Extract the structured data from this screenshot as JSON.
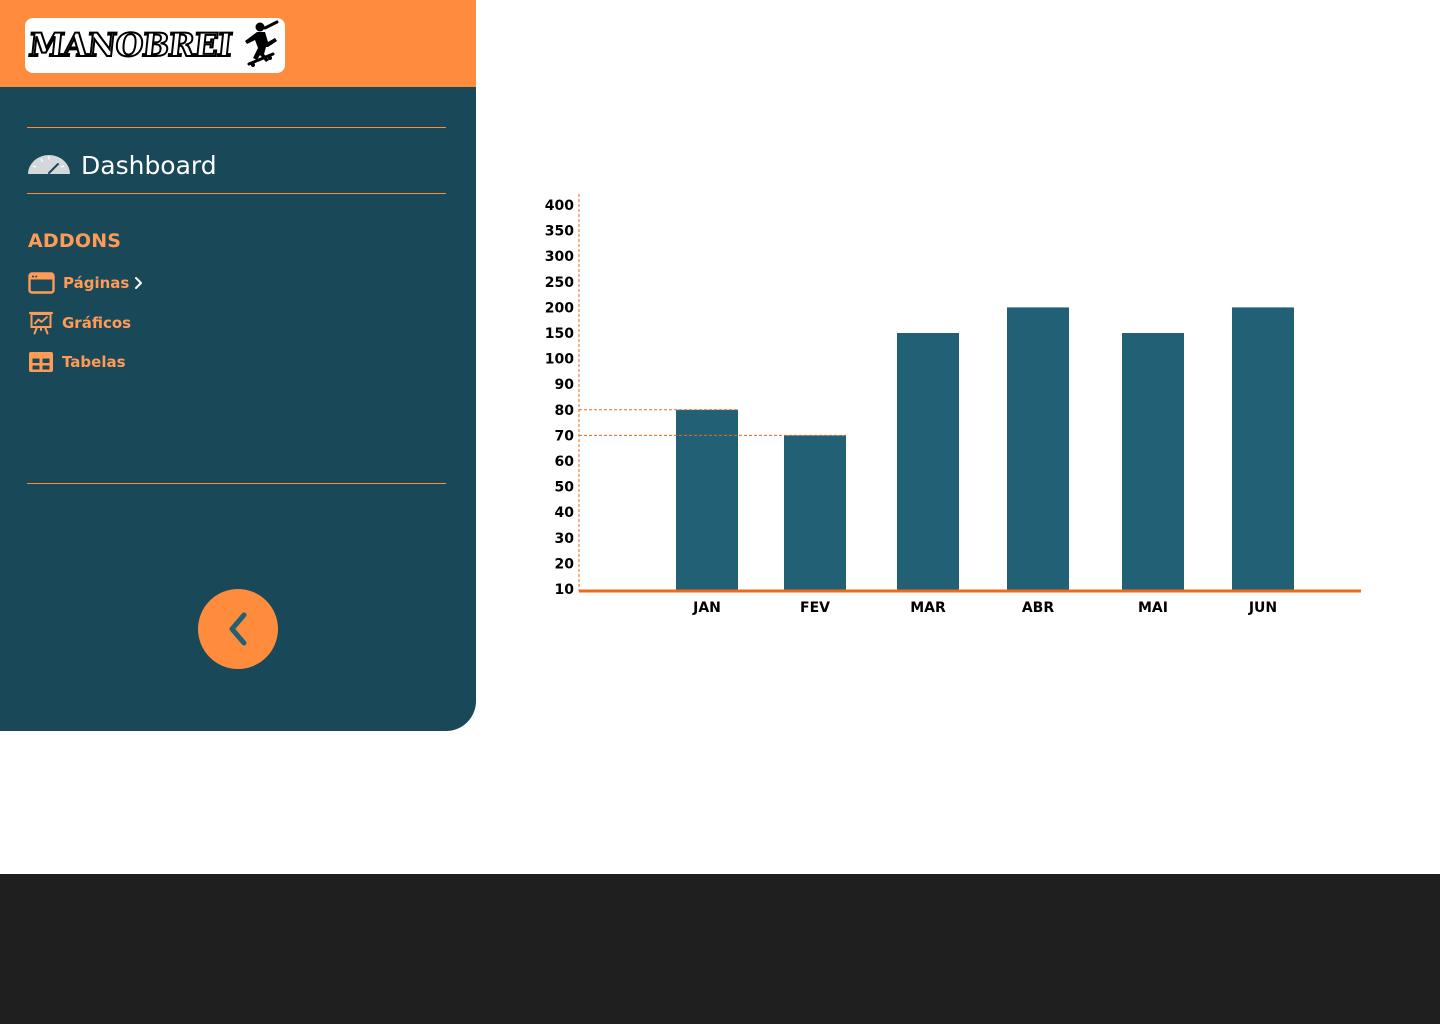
{
  "brand": {
    "logo_text": "MANOBREI",
    "logo_icon": "skateboarder-icon"
  },
  "sidebar": {
    "dashboard": {
      "label": "Dashboard",
      "icon": "speedometer-icon"
    },
    "addons_title": "ADDONS",
    "items": [
      {
        "label": "Páginas",
        "icon": "browser-window-icon",
        "has_submenu": true
      },
      {
        "label": "Gráficos",
        "icon": "presentation-chart-icon",
        "has_submenu": false
      },
      {
        "label": "Tabelas",
        "icon": "table-icon",
        "has_submenu": false
      }
    ],
    "collapse_icon": "chevron-left-icon"
  },
  "colors": {
    "accent": "#FF8C3D",
    "accent_text": "#FF9B55",
    "sidebar_bg": "#194859",
    "bar": "#216075",
    "footer_bg": "#1F1F1F"
  },
  "chart_data": {
    "type": "bar",
    "categories": [
      "JAN",
      "FEV",
      "MAR",
      "ABR",
      "MAI",
      "JUN"
    ],
    "values": [
      80,
      70,
      150,
      200,
      150,
      200
    ],
    "y_ticks": [
      10,
      20,
      30,
      40,
      50,
      60,
      70,
      80,
      90,
      100,
      150,
      200,
      250,
      300,
      350,
      400
    ],
    "y_scale": "categorical-ticks",
    "reference_lines": [
      80,
      70
    ],
    "title": "",
    "xlabel": "",
    "ylabel": "",
    "ylim": [
      10,
      400
    ],
    "grid": false,
    "legend": "none"
  }
}
